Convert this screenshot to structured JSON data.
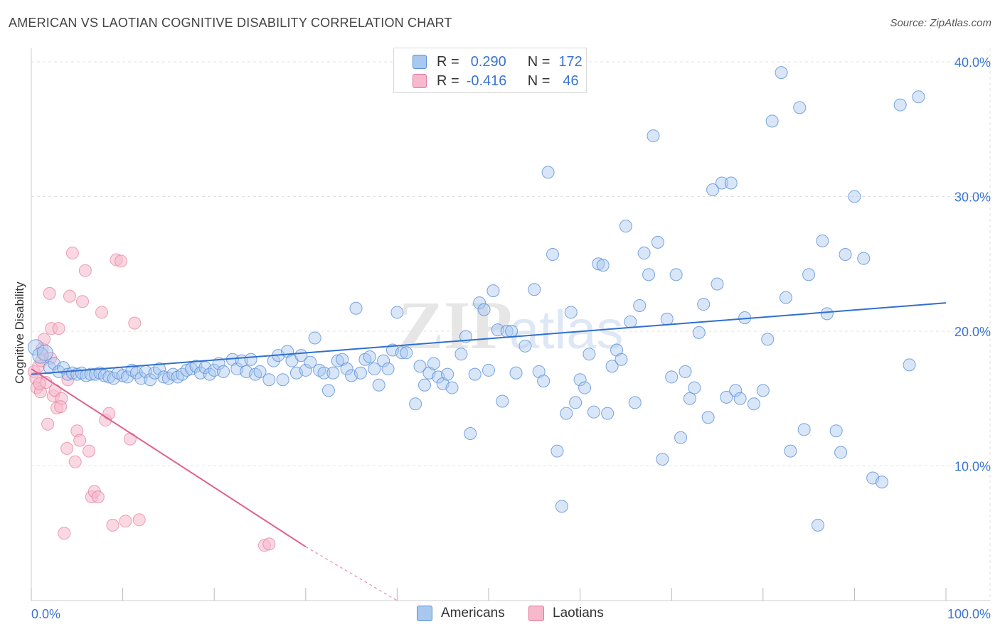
{
  "header": {
    "title": "AMERICAN VS LAOTIAN COGNITIVE DISABILITY CORRELATION CHART",
    "source": "Source: ZipAtlas.com"
  },
  "legend": {
    "r_label": "R =",
    "n_label": "N =",
    "americans": {
      "r": "0.290",
      "n": "172"
    },
    "laotians": {
      "r": "-0.416",
      "n": "46"
    }
  },
  "series_labels": {
    "americans": "Americans",
    "laotians": "Laotians"
  },
  "colors": {
    "americans_fill": "#a8c8f0",
    "americans_stroke": "#5a8fd8",
    "americans_line": "#2f6fd0",
    "laotians_fill": "#f6b8cb",
    "laotians_stroke": "#e27aa0",
    "laotians_line": "#e0608e",
    "tick_text": "#3a74d1",
    "grid": "#e2e2e2"
  },
  "chart_data": {
    "type": "scatter",
    "xlabel": "",
    "ylabel": "Cognitive Disability",
    "x_tick_labels": [
      "0.0%",
      "100.0%"
    ],
    "y_tick_labels": [
      "10.0%",
      "20.0%",
      "30.0%",
      "40.0%"
    ],
    "xlim": [
      0,
      100
    ],
    "ylim": [
      0,
      41
    ],
    "grid": true,
    "legend_position": "top-center",
    "series": [
      {
        "name": "Americans",
        "points": [
          [
            0.5,
            18.8
          ],
          [
            1,
            18.2
          ],
          [
            1.5,
            18.4
          ],
          [
            2,
            17.3
          ],
          [
            2.5,
            17.6
          ],
          [
            3,
            17.0
          ],
          [
            3.5,
            17.3
          ],
          [
            4,
            16.8
          ],
          [
            4.5,
            16.9
          ],
          [
            5,
            16.8
          ],
          [
            5.5,
            16.9
          ],
          [
            6,
            16.7
          ],
          [
            6.5,
            16.8
          ],
          [
            7,
            16.8
          ],
          [
            7.5,
            16.9
          ],
          [
            8,
            16.7
          ],
          [
            8.5,
            16.6
          ],
          [
            9,
            16.5
          ],
          [
            9.5,
            16.9
          ],
          [
            10,
            16.7
          ],
          [
            10.5,
            16.6
          ],
          [
            11,
            17.1
          ],
          [
            11.5,
            16.9
          ],
          [
            12,
            16.5
          ],
          [
            12.5,
            17.0
          ],
          [
            13,
            16.4
          ],
          [
            13.5,
            16.9
          ],
          [
            14,
            17.2
          ],
          [
            14.5,
            16.6
          ],
          [
            15,
            16.5
          ],
          [
            15.5,
            16.8
          ],
          [
            16,
            16.6
          ],
          [
            16.5,
            16.8
          ],
          [
            17,
            17.1
          ],
          [
            17.5,
            17.2
          ],
          [
            18,
            17.4
          ],
          [
            18.5,
            16.9
          ],
          [
            19,
            17.3
          ],
          [
            19.5,
            16.8
          ],
          [
            20,
            17.1
          ],
          [
            20.5,
            17.6
          ],
          [
            21,
            17.0
          ],
          [
            22,
            17.9
          ],
          [
            22.5,
            17.2
          ],
          [
            23,
            17.8
          ],
          [
            23.5,
            17.0
          ],
          [
            24,
            17.9
          ],
          [
            24.5,
            16.8
          ],
          [
            25,
            17.0
          ],
          [
            26,
            16.4
          ],
          [
            26.5,
            17.8
          ],
          [
            27,
            18.2
          ],
          [
            27.5,
            16.4
          ],
          [
            28,
            18.5
          ],
          [
            28.5,
            17.8
          ],
          [
            29,
            16.9
          ],
          [
            29.5,
            18.2
          ],
          [
            30,
            17.1
          ],
          [
            30.5,
            17.7
          ],
          [
            31,
            19.5
          ],
          [
            31.5,
            17.1
          ],
          [
            32,
            16.9
          ],
          [
            32.5,
            15.6
          ],
          [
            33,
            16.9
          ],
          [
            33.5,
            17.8
          ],
          [
            34,
            17.9
          ],
          [
            34.5,
            17.2
          ],
          [
            35,
            16.7
          ],
          [
            35.5,
            21.7
          ],
          [
            36,
            16.9
          ],
          [
            36.5,
            17.9
          ],
          [
            37,
            18.1
          ],
          [
            37.5,
            17.2
          ],
          [
            38,
            16.0
          ],
          [
            38.5,
            17.8
          ],
          [
            39,
            17.2
          ],
          [
            39.5,
            18.6
          ],
          [
            40,
            21.4
          ],
          [
            40.5,
            18.4
          ],
          [
            41,
            18.4
          ],
          [
            42,
            14.6
          ],
          [
            42.5,
            17.4
          ],
          [
            43,
            16.0
          ],
          [
            43.5,
            16.9
          ],
          [
            44,
            17.6
          ],
          [
            44.5,
            16.6
          ],
          [
            45,
            16.1
          ],
          [
            45.5,
            16.8
          ],
          [
            46,
            15.8
          ],
          [
            47,
            18.3
          ],
          [
            47.5,
            19.6
          ],
          [
            48,
            12.4
          ],
          [
            48.5,
            16.8
          ],
          [
            49,
            22.1
          ],
          [
            49.5,
            21.6
          ],
          [
            50,
            17.1
          ],
          [
            50.5,
            23.0
          ],
          [
            51,
            20.1
          ],
          [
            51.5,
            14.8
          ],
          [
            52,
            20.0
          ],
          [
            52.5,
            20.0
          ],
          [
            53,
            16.9
          ],
          [
            54,
            18.9
          ],
          [
            55,
            23.1
          ],
          [
            55.5,
            17.0
          ],
          [
            56,
            16.3
          ],
          [
            56.5,
            31.8
          ],
          [
            57,
            25.7
          ],
          [
            57.5,
            11.1
          ],
          [
            58,
            7.0
          ],
          [
            58.5,
            13.9
          ],
          [
            59,
            21.4
          ],
          [
            59.5,
            14.7
          ],
          [
            60,
            16.4
          ],
          [
            60.5,
            15.8
          ],
          [
            61,
            18.3
          ],
          [
            61.5,
            14.0
          ],
          [
            62,
            25.0
          ],
          [
            62.5,
            24.9
          ],
          [
            63,
            13.9
          ],
          [
            63.5,
            17.4
          ],
          [
            64,
            18.6
          ],
          [
            64.5,
            17.9
          ],
          [
            65,
            27.8
          ],
          [
            65.5,
            20.7
          ],
          [
            66,
            14.7
          ],
          [
            66.5,
            21.9
          ],
          [
            67,
            25.8
          ],
          [
            67.5,
            24.2
          ],
          [
            68,
            34.5
          ],
          [
            68.5,
            26.6
          ],
          [
            69,
            10.5
          ],
          [
            69.5,
            20.9
          ],
          [
            70,
            16.6
          ],
          [
            70.5,
            24.2
          ],
          [
            71,
            12.1
          ],
          [
            71.5,
            17.0
          ],
          [
            72,
            15.0
          ],
          [
            72.5,
            15.8
          ],
          [
            73,
            19.9
          ],
          [
            73.5,
            22.0
          ],
          [
            74,
            13.6
          ],
          [
            74.5,
            30.5
          ],
          [
            75,
            23.5
          ],
          [
            75.5,
            31.0
          ],
          [
            76,
            15.1
          ],
          [
            76.5,
            31.0
          ],
          [
            77,
            15.6
          ],
          [
            77.5,
            15.0
          ],
          [
            78,
            21.0
          ],
          [
            79,
            14.6
          ],
          [
            80,
            15.6
          ],
          [
            80.5,
            19.4
          ],
          [
            81,
            35.6
          ],
          [
            82,
            39.2
          ],
          [
            82.5,
            22.5
          ],
          [
            83,
            11.1
          ],
          [
            84,
            36.6
          ],
          [
            84.5,
            12.7
          ],
          [
            85,
            24.2
          ],
          [
            86,
            5.6
          ],
          [
            86.5,
            26.7
          ],
          [
            87,
            21.3
          ],
          [
            88,
            12.6
          ],
          [
            88.5,
            11.0
          ],
          [
            89,
            25.7
          ],
          [
            90,
            30.0
          ],
          [
            91,
            25.4
          ],
          [
            92,
            9.1
          ],
          [
            93,
            8.8
          ],
          [
            95,
            36.8
          ],
          [
            96,
            17.5
          ],
          [
            97,
            37.4
          ]
        ],
        "trend": {
          "x": [
            0,
            100
          ],
          "y": [
            16.8,
            22.1
          ]
        }
      },
      {
        "name": "Laotians",
        "points": [
          [
            0.3,
            17.0
          ],
          [
            0.5,
            16.5
          ],
          [
            0.6,
            15.8
          ],
          [
            0.8,
            17.4
          ],
          [
            1,
            15.5
          ],
          [
            1.2,
            18.7
          ],
          [
            1.4,
            19.4
          ],
          [
            1.6,
            16.2
          ],
          [
            1.8,
            13.1
          ],
          [
            2,
            22.8
          ],
          [
            2.2,
            20.2
          ],
          [
            2.4,
            15.2
          ],
          [
            2.6,
            15.6
          ],
          [
            2.8,
            14.3
          ],
          [
            3,
            20.2
          ],
          [
            3.3,
            15.0
          ],
          [
            3.6,
            5.0
          ],
          [
            3.9,
            11.3
          ],
          [
            4.2,
            22.6
          ],
          [
            4.5,
            25.8
          ],
          [
            4.8,
            10.3
          ],
          [
            5,
            12.6
          ],
          [
            5.3,
            11.9
          ],
          [
            5.6,
            22.2
          ],
          [
            5.9,
            24.5
          ],
          [
            6.3,
            11.1
          ],
          [
            6.6,
            7.7
          ],
          [
            6.9,
            8.1
          ],
          [
            7.3,
            7.7
          ],
          [
            7.7,
            21.4
          ],
          [
            8.1,
            13.4
          ],
          [
            8.5,
            13.9
          ],
          [
            8.9,
            5.6
          ],
          [
            9.3,
            25.3
          ],
          [
            9.8,
            25.2
          ],
          [
            10.3,
            5.9
          ],
          [
            10.8,
            12.0
          ],
          [
            11.3,
            20.6
          ],
          [
            11.8,
            6.0
          ],
          [
            25.5,
            4.1
          ],
          [
            26,
            4.2
          ],
          [
            1.1,
            17.8
          ],
          [
            0.9,
            16.1
          ],
          [
            2.1,
            18.0
          ],
          [
            3.2,
            14.4
          ],
          [
            4,
            16.4
          ]
        ],
        "trend": {
          "x": [
            0,
            30
          ],
          "y": [
            17.2,
            4.0
          ]
        },
        "trend_extension": {
          "x": [
            30,
            40
          ],
          "y": [
            4.0,
            0.0
          ]
        }
      }
    ]
  }
}
